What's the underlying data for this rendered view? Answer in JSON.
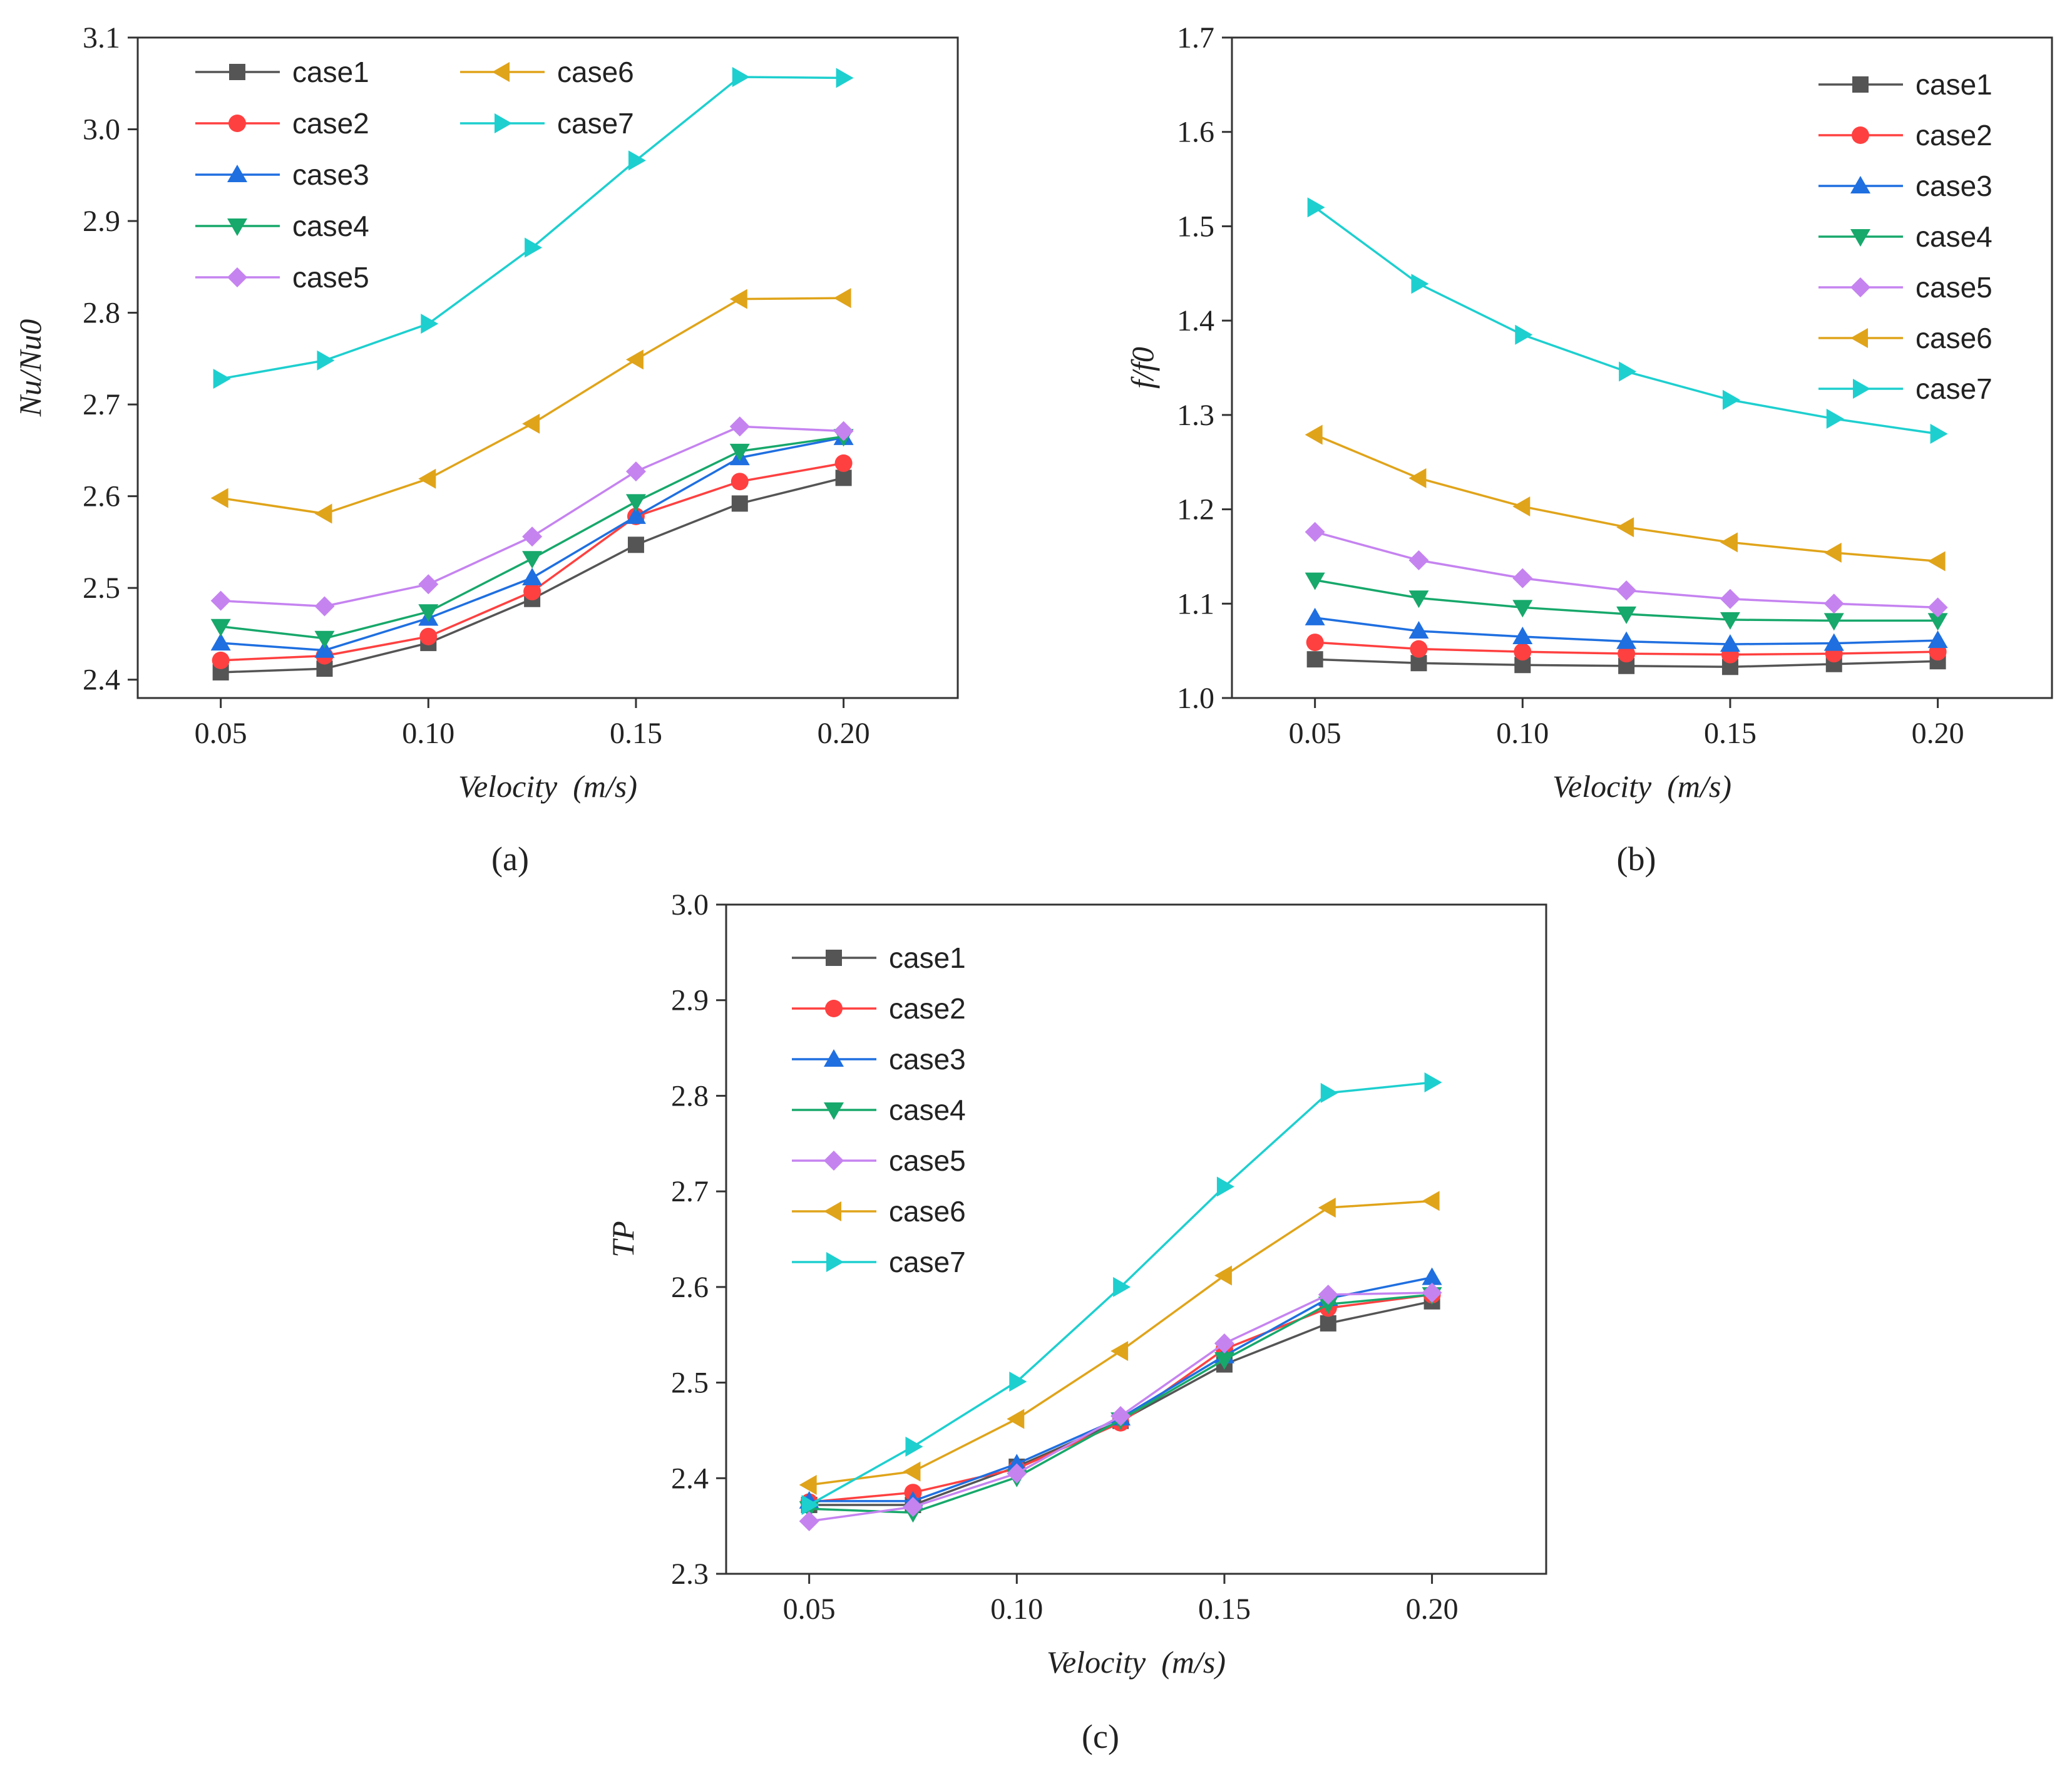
{
  "chart_data": [
    {
      "type": "line",
      "caption": "(a)",
      "xlabel": "Velocity  (m/s)",
      "ylabel": "Nu/Nu0",
      "x": [
        0.05,
        0.075,
        0.1,
        0.125,
        0.15,
        0.175,
        0.2
      ],
      "xlim": [
        0.03,
        0.2275
      ],
      "xticks": [
        "0.05",
        "0.10",
        "0.15",
        "0.20"
      ],
      "ylim": [
        2.38,
        3.1
      ],
      "yticks": [
        "2.4",
        "2.5",
        "2.6",
        "2.7",
        "2.8",
        "2.9",
        "3.0",
        "3.1"
      ],
      "legend": "top-left",
      "legend_columns": 2,
      "series": [
        {
          "name": "case1",
          "values": [
            2.408,
            2.412,
            2.44,
            2.488,
            2.547,
            2.592,
            2.62
          ]
        },
        {
          "name": "case2",
          "values": [
            2.421,
            2.426,
            2.447,
            2.496,
            2.578,
            2.616,
            2.636
          ]
        },
        {
          "name": "case3",
          "values": [
            2.44,
            2.432,
            2.467,
            2.511,
            2.578,
            2.642,
            2.664
          ]
        },
        {
          "name": "case4",
          "values": [
            2.458,
            2.445,
            2.474,
            2.532,
            2.594,
            2.649,
            2.665
          ]
        },
        {
          "name": "case5",
          "values": [
            2.486,
            2.48,
            2.504,
            2.556,
            2.627,
            2.676,
            2.671
          ]
        },
        {
          "name": "case6",
          "values": [
            2.598,
            2.581,
            2.619,
            2.679,
            2.749,
            2.815,
            2.816
          ]
        },
        {
          "name": "case7",
          "values": [
            2.728,
            2.748,
            2.788,
            2.871,
            2.966,
            3.057,
            3.056
          ]
        }
      ]
    },
    {
      "type": "line",
      "caption": "(b)",
      "xlabel": "Velocity  (m/s)",
      "ylabel": "f/f0",
      "x": [
        0.05,
        0.075,
        0.1,
        0.125,
        0.15,
        0.175,
        0.2
      ],
      "xlim": [
        0.03,
        0.2275
      ],
      "xticks": [
        "0.05",
        "0.10",
        "0.15",
        "0.20"
      ],
      "ylim": [
        1.0,
        1.7
      ],
      "yticks": [
        "1.0",
        "1.1",
        "1.2",
        "1.3",
        "1.4",
        "1.5",
        "1.6",
        "1.7"
      ],
      "legend": "top-right",
      "legend_columns": 1,
      "series": [
        {
          "name": "case1",
          "values": [
            1.041,
            1.037,
            1.035,
            1.034,
            1.033,
            1.036,
            1.039
          ]
        },
        {
          "name": "case2",
          "values": [
            1.059,
            1.052,
            1.049,
            1.047,
            1.046,
            1.047,
            1.049
          ]
        },
        {
          "name": "case3",
          "values": [
            1.085,
            1.071,
            1.065,
            1.06,
            1.057,
            1.058,
            1.061
          ]
        },
        {
          "name": "case4",
          "values": [
            1.125,
            1.106,
            1.096,
            1.089,
            1.083,
            1.082,
            1.082
          ]
        },
        {
          "name": "case5",
          "values": [
            1.176,
            1.146,
            1.127,
            1.114,
            1.105,
            1.1,
            1.096
          ]
        },
        {
          "name": "case6",
          "values": [
            1.279,
            1.233,
            1.203,
            1.181,
            1.165,
            1.154,
            1.145
          ]
        },
        {
          "name": "case7",
          "values": [
            1.52,
            1.439,
            1.385,
            1.346,
            1.316,
            1.296,
            1.28
          ]
        }
      ]
    },
    {
      "type": "line",
      "caption": "(c)",
      "xlabel": "Velocity  (m/s)",
      "ylabel": "TP",
      "x": [
        0.05,
        0.075,
        0.1,
        0.125,
        0.15,
        0.175,
        0.2
      ],
      "xlim": [
        0.03,
        0.2275
      ],
      "xticks": [
        "0.05",
        "0.10",
        "0.15",
        "0.20"
      ],
      "ylim": [
        2.3,
        3.0
      ],
      "yticks": [
        "2.3",
        "2.4",
        "2.5",
        "2.6",
        "2.7",
        "2.8",
        "2.9",
        "3.0"
      ],
      "legend": "top-left",
      "legend_columns": 1,
      "series": [
        {
          "name": "case1",
          "values": [
            2.372,
            2.372,
            2.412,
            2.46,
            2.519,
            2.562,
            2.585
          ]
        },
        {
          "name": "case2",
          "values": [
            2.375,
            2.385,
            2.41,
            2.458,
            2.535,
            2.578,
            2.592
          ]
        },
        {
          "name": "case3",
          "values": [
            2.376,
            2.376,
            2.415,
            2.463,
            2.528,
            2.588,
            2.61
          ]
        },
        {
          "name": "case4",
          "values": [
            2.368,
            2.364,
            2.401,
            2.461,
            2.524,
            2.582,
            2.592
          ]
        },
        {
          "name": "case5",
          "values": [
            2.355,
            2.37,
            2.405,
            2.465,
            2.541,
            2.592,
            2.594
          ]
        },
        {
          "name": "case6",
          "values": [
            2.393,
            2.407,
            2.462,
            2.533,
            2.612,
            2.683,
            2.69
          ]
        },
        {
          "name": "case7",
          "values": [
            2.372,
            2.433,
            2.501,
            2.6,
            2.705,
            2.803,
            2.814
          ]
        }
      ]
    }
  ],
  "series_style": [
    {
      "name": "case1",
      "color": "#555555",
      "marker": "square"
    },
    {
      "name": "case2",
      "color": "#ff4040",
      "marker": "circle"
    },
    {
      "name": "case3",
      "color": "#1f6fe0",
      "marker": "triangle-up"
    },
    {
      "name": "case4",
      "color": "#17a86b",
      "marker": "triangle-down"
    },
    {
      "name": "case5",
      "color": "#c583f0",
      "marker": "diamond"
    },
    {
      "name": "case6",
      "color": "#e0a41a",
      "marker": "triangle-left"
    },
    {
      "name": "case7",
      "color": "#1ecfcf",
      "marker": "triangle-right"
    }
  ]
}
